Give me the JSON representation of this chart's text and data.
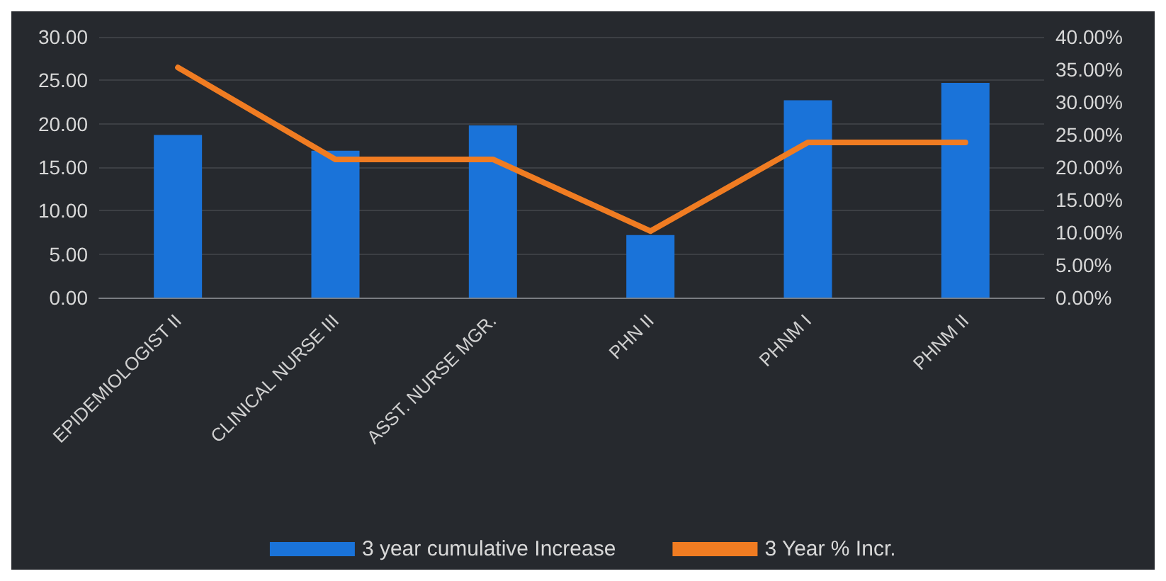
{
  "chart_data": {
    "type": "bar",
    "categories": [
      "EPIDEMIOLOGIST II",
      "CLINICAL NURSE III",
      "ASST. NURSE MGR.",
      "PHN II",
      "PHNM I",
      "PHNM II"
    ],
    "series": [
      {
        "name": "3 year cumulative Increase",
        "color": "#1a73d9",
        "values": [
          18.7,
          16.9,
          19.8,
          7.2,
          22.7,
          24.7
        ]
      },
      {
        "name": "3 Year % Incr.",
        "type": "line",
        "axis": "y2",
        "color": "#f07c22",
        "values": [
          35.3,
          21.2,
          21.2,
          10.2,
          23.8,
          23.8
        ]
      }
    ],
    "ylim": [
      0,
      30
    ],
    "yticks": [
      {
        "value": 0,
        "label": "0.00"
      },
      {
        "value": 5,
        "label": "5.00"
      },
      {
        "value": 10,
        "label": "10.00"
      },
      {
        "value": 15,
        "label": "15.00"
      },
      {
        "value": 20,
        "label": "20.00"
      },
      {
        "value": 25,
        "label": "25.00"
      },
      {
        "value": 30,
        "label": "30.00"
      }
    ],
    "y2lim": [
      0,
      40
    ],
    "y2ticks": [
      {
        "value": 0,
        "label": "0.00%"
      },
      {
        "value": 5,
        "label": "5.00%"
      },
      {
        "value": 10,
        "label": "10.00%"
      },
      {
        "value": 15,
        "label": "15.00%"
      },
      {
        "value": 20,
        "label": "20.00%"
      },
      {
        "value": 25,
        "label": "25.00%"
      },
      {
        "value": 30,
        "label": "30.00%"
      },
      {
        "value": 35,
        "label": "35.00%"
      },
      {
        "value": 40,
        "label": "40.00%"
      }
    ],
    "grid": "y",
    "legend": "bottom",
    "marker": "none"
  }
}
